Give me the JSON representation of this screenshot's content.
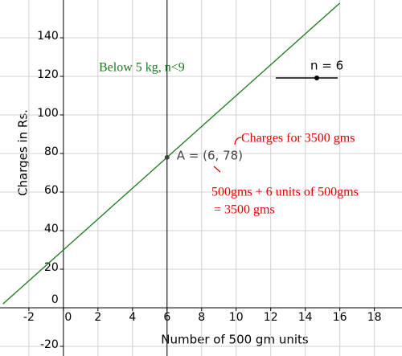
{
  "chart_data": {
    "type": "line",
    "xlabel": "Number of 500 gm units",
    "ylabel": "Charges in Rs.",
    "x": [
      -3.5,
      16
    ],
    "values": [
      2,
      158
    ],
    "color": "#1a7a1a",
    "xlim": [
      -3.67,
      19.6
    ],
    "ylim": [
      -25,
      159.6
    ],
    "xticks": [
      -2,
      0,
      2,
      4,
      6,
      8,
      10,
      12,
      14,
      16,
      18
    ],
    "yticks": [
      -20,
      0,
      20,
      40,
      60,
      80,
      100,
      120,
      140
    ],
    "grid": true,
    "vline": 6,
    "point": {
      "label": "A = (6, 78)",
      "x": 6,
      "y": 78
    },
    "slider_label": "n = 6",
    "annotations": [
      {
        "text": "Below 5 kg, n<9",
        "color": "#1a7a1a"
      },
      {
        "text": "Charges for 3500 gms",
        "color": "#e00000"
      },
      {
        "text": "500gms + 6 units of 500gms",
        "color": "#e00000"
      },
      {
        "text": "= 3500 gms",
        "color": "#e00000"
      }
    ]
  }
}
